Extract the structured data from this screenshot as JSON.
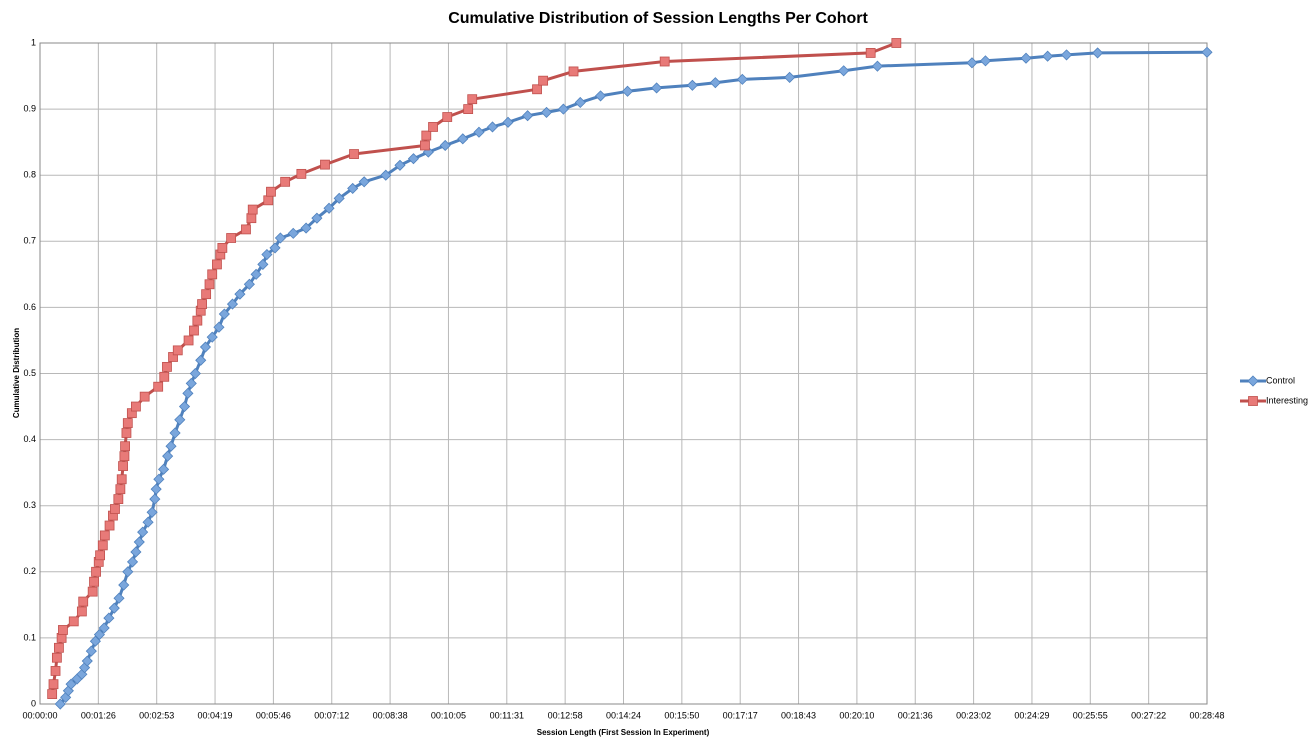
{
  "chart_data": {
    "type": "line",
    "title": "Cumulative Distribution of Session Lengths Per Cohort",
    "x_label": "Session Length (First Session In Experiment)",
    "y_label": "Cumulative Distribution",
    "xlim": [
      0,
      1728
    ],
    "ylim": [
      0,
      1
    ],
    "xticks": [
      {
        "value": 0,
        "label": "00:00:00"
      },
      {
        "value": 86.4,
        "label": "00:01:26"
      },
      {
        "value": 172.8,
        "label": "00:02:53"
      },
      {
        "value": 259.2,
        "label": "00:04:19"
      },
      {
        "value": 345.6,
        "label": "00:05:46"
      },
      {
        "value": 432,
        "label": "00:07:12"
      },
      {
        "value": 518.4,
        "label": "00:08:38"
      },
      {
        "value": 604.8,
        "label": "00:10:05"
      },
      {
        "value": 691.2,
        "label": "00:11:31"
      },
      {
        "value": 777.6,
        "label": "00:12:58"
      },
      {
        "value": 864,
        "label": "00:14:24"
      },
      {
        "value": 950.4,
        "label": "00:15:50"
      },
      {
        "value": 1036.8,
        "label": "00:17:17"
      },
      {
        "value": 1123.2,
        "label": "00:18:43"
      },
      {
        "value": 1209.6,
        "label": "00:20:10"
      },
      {
        "value": 1296,
        "label": "00:21:36"
      },
      {
        "value": 1382.4,
        "label": "00:23:02"
      },
      {
        "value": 1468.8,
        "label": "00:24:29"
      },
      {
        "value": 1555.2,
        "label": "00:25:55"
      },
      {
        "value": 1641.6,
        "label": "00:27:22"
      },
      {
        "value": 1728,
        "label": "00:28:48"
      }
    ],
    "yticks": [
      0,
      0.1,
      0.2,
      0.3,
      0.4,
      0.5,
      0.6,
      0.7,
      0.8,
      0.9,
      1
    ],
    "grid": true,
    "legend": "right",
    "series": [
      {
        "name": "Control",
        "color": "#4f81bd",
        "marker": "diamond",
        "x": [
          30,
          38,
          42,
          46,
          55,
          62,
          66,
          70,
          76,
          82,
          88,
          95,
          102,
          110,
          117,
          124,
          130,
          137,
          142,
          147,
          152,
          160,
          166,
          170,
          172,
          176,
          183,
          189,
          194,
          200,
          207,
          214,
          219,
          224,
          230,
          238,
          245,
          255,
          265,
          273,
          285,
          296,
          310,
          320,
          330,
          336,
          348,
          356,
          375,
          394,
          410,
          428,
          443,
          463,
          480,
          512,
          533,
          553,
          575,
          600,
          626,
          650,
          670,
          693,
          722,
          750,
          775,
          800,
          830,
          870,
          913,
          966,
          1000,
          1040,
          1110,
          1190,
          1240,
          1380,
          1400,
          1460,
          1492,
          1520,
          1566,
          1728
        ],
        "values": [
          0,
          0.01,
          0.02,
          0.03,
          0.038,
          0.045,
          0.055,
          0.065,
          0.08,
          0.095,
          0.105,
          0.115,
          0.13,
          0.145,
          0.16,
          0.18,
          0.2,
          0.215,
          0.23,
          0.245,
          0.26,
          0.275,
          0.29,
          0.31,
          0.325,
          0.34,
          0.355,
          0.375,
          0.39,
          0.41,
          0.43,
          0.45,
          0.47,
          0.485,
          0.5,
          0.52,
          0.54,
          0.555,
          0.57,
          0.59,
          0.605,
          0.62,
          0.635,
          0.65,
          0.665,
          0.68,
          0.69,
          0.705,
          0.712,
          0.72,
          0.735,
          0.75,
          0.765,
          0.78,
          0.79,
          0.8,
          0.815,
          0.825,
          0.835,
          0.845,
          0.855,
          0.865,
          0.873,
          0.88,
          0.89,
          0.895,
          0.9,
          0.91,
          0.92,
          0.927,
          0.932,
          0.936,
          0.94,
          0.945,
          0.948,
          0.958,
          0.965,
          0.97,
          0.973,
          0.977,
          0.98,
          0.982,
          0.985,
          0.986
        ]
      },
      {
        "name": "Interesting",
        "color": "#c0504d",
        "marker": "square",
        "x": [
          18,
          20,
          23,
          25,
          28,
          32,
          34,
          50,
          62,
          64,
          78,
          80,
          83,
          87,
          89,
          93,
          96,
          103,
          108,
          111,
          116,
          119,
          121,
          123,
          125,
          126,
          128,
          130,
          136,
          142,
          155,
          175,
          184,
          188,
          197,
          204,
          220,
          228,
          233,
          238,
          240,
          246,
          251,
          255,
          262,
          267,
          270,
          283,
          305,
          313,
          315,
          338,
          342,
          363,
          387,
          422,
          465,
          570,
          572,
          582,
          603,
          634,
          640,
          736,
          745,
          790,
          925,
          1230,
          1268
        ],
        "values": [
          0.015,
          0.03,
          0.05,
          0.07,
          0.085,
          0.1,
          0.112,
          0.125,
          0.14,
          0.155,
          0.17,
          0.185,
          0.2,
          0.215,
          0.225,
          0.24,
          0.255,
          0.27,
          0.285,
          0.295,
          0.31,
          0.325,
          0.34,
          0.36,
          0.375,
          0.39,
          0.41,
          0.425,
          0.44,
          0.45,
          0.465,
          0.48,
          0.495,
          0.51,
          0.525,
          0.535,
          0.55,
          0.565,
          0.58,
          0.595,
          0.605,
          0.62,
          0.635,
          0.65,
          0.665,
          0.68,
          0.69,
          0.705,
          0.718,
          0.735,
          0.748,
          0.762,
          0.775,
          0.79,
          0.802,
          0.816,
          0.832,
          0.845,
          0.86,
          0.873,
          0.888,
          0.9,
          0.915,
          0.93,
          0.943,
          0.957,
          0.972,
          0.985,
          1.0
        ]
      }
    ]
  }
}
